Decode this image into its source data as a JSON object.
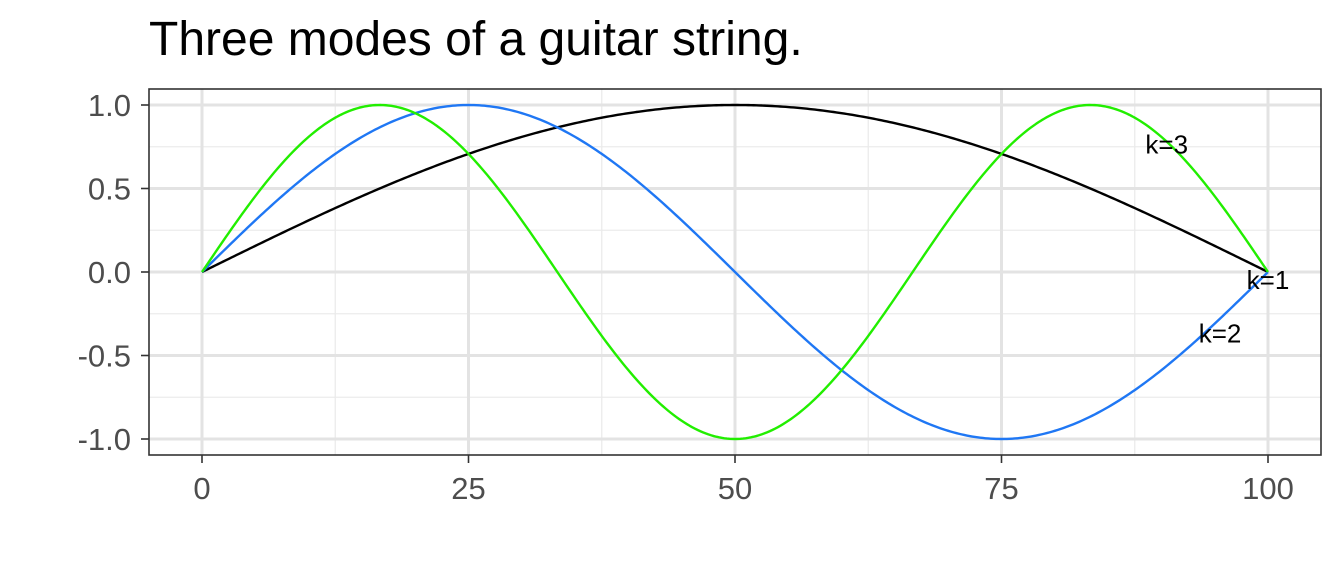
{
  "chart_data": {
    "type": "line",
    "title": "Three modes of a guitar string.",
    "xlabel": "",
    "ylabel": "",
    "xlim": [
      0,
      100
    ],
    "ylim": [
      -1,
      1
    ],
    "x_ticks": [
      "0",
      "25",
      "50",
      "75",
      "100"
    ],
    "y_ticks": [
      "1.0",
      "0.5",
      "0.0",
      "-0.5",
      "-1.0"
    ],
    "grid": true,
    "legend": "none",
    "series": [
      {
        "name": "k=1",
        "k": 1,
        "color": "#000000",
        "function": "sin(k*pi*x/100)",
        "label_x": 100,
        "label_y": -0.06
      },
      {
        "name": "k=2",
        "k": 2,
        "color": "#1f77f4",
        "function": "sin(k*pi*x/100)",
        "label_x": 95.5,
        "label_y": -0.38
      },
      {
        "name": "k=3",
        "k": 3,
        "color": "#22ee00",
        "function": "sin(k*pi*x/100)",
        "label_x": 90.5,
        "label_y": 0.75
      }
    ]
  }
}
